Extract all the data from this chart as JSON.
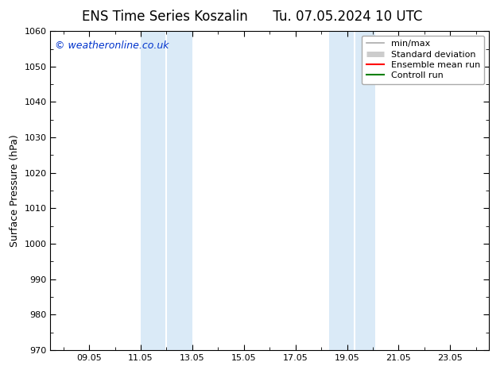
{
  "title": "ENS Time Series Koszalin      Tu. 07.05.2024 10 UTC",
  "ylabel": "Surface Pressure (hPa)",
  "ylim": [
    970,
    1060
  ],
  "ytick_step": 10,
  "background_color": "#ffffff",
  "plot_bg_color": "#ffffff",
  "watermark": "© weatheronline.co.uk",
  "shade_bands": [
    {
      "xstart": 11.0,
      "xend": 12.0,
      "color": "#daeaf7"
    },
    {
      "xstart": 12.0,
      "xend": 13.0,
      "color": "#daeaf7"
    },
    {
      "xstart": 18.3,
      "xend": 19.3,
      "color": "#daeaf7"
    },
    {
      "xstart": 19.3,
      "xend": 20.1,
      "color": "#daeaf7"
    }
  ],
  "xtick_labels": [
    "09.05",
    "11.05",
    "13.05",
    "15.05",
    "17.05",
    "19.05",
    "21.05",
    "23.05"
  ],
  "xtick_positions": [
    9,
    11,
    13,
    15,
    17,
    19,
    21,
    23
  ],
  "xlim": [
    7.5,
    24.5
  ],
  "legend_items": [
    {
      "label": "min/max",
      "color": "#aaaaaa",
      "lw": 1.2,
      "ls": "-"
    },
    {
      "label": "Standard deviation",
      "color": "#cccccc",
      "lw": 5,
      "ls": "-"
    },
    {
      "label": "Ensemble mean run",
      "color": "#ff0000",
      "lw": 1.5,
      "ls": "-"
    },
    {
      "label": "Controll run",
      "color": "#008000",
      "lw": 1.5,
      "ls": "-"
    }
  ],
  "title_fontsize": 12,
  "axis_label_fontsize": 9,
  "tick_fontsize": 8,
  "legend_fontsize": 8,
  "watermark_fontsize": 9,
  "watermark_color": "#0033cc"
}
